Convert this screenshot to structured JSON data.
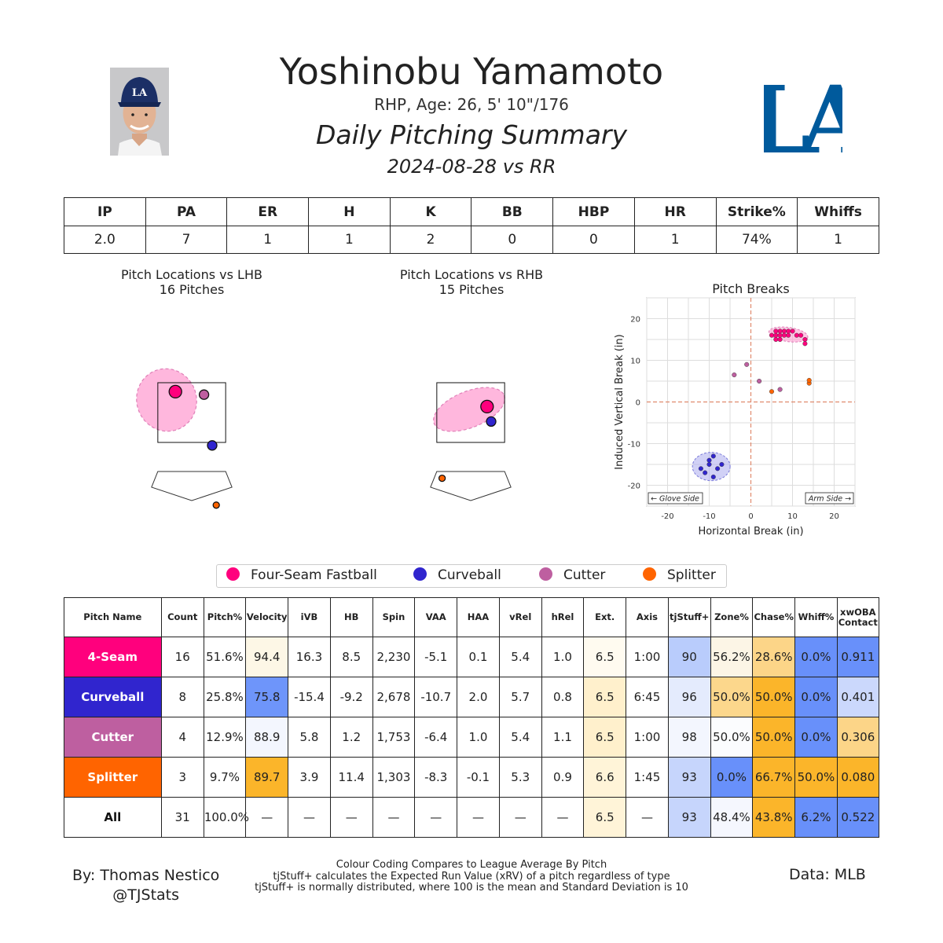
{
  "header": {
    "name": "Yoshinobu Yamamoto",
    "bio": "RHP, Age: 26, 5' 10\"/176",
    "summary_title": "Daily Pitching Summary",
    "game": "2024-08-28 vs RR",
    "team_logo": "LA"
  },
  "stat_line": {
    "headers": [
      "IP",
      "PA",
      "ER",
      "H",
      "K",
      "BB",
      "HBP",
      "HR",
      "Strike%",
      "Whiffs"
    ],
    "values": [
      "2.0",
      "7",
      "1",
      "1",
      "2",
      "0",
      "0",
      "1",
      "74%",
      "1"
    ]
  },
  "colors": {
    "four_seam": "#ff007d",
    "curveball": "#3025ce",
    "cutter": "#be5fa0",
    "splitter": "#ff6400"
  },
  "legend": {
    "items": [
      {
        "label": "Four-Seam Fastball",
        "color": "#ff007d"
      },
      {
        "label": "Curveball",
        "color": "#3025ce"
      },
      {
        "label": "Cutter",
        "color": "#be5fa0"
      },
      {
        "label": "Splitter",
        "color": "#ff6400"
      }
    ]
  },
  "chart_data": [
    {
      "type": "scatter",
      "title": "Pitch Locations vs LHB",
      "subtitle": "16 Pitches",
      "points": [
        {
          "pitch": "Four-Seam Fastball",
          "x": -0.4,
          "y": 3.2,
          "size": "large"
        },
        {
          "pitch": "Cutter",
          "x": 0.3,
          "y": 3.1,
          "size": "medium"
        },
        {
          "pitch": "Curveball",
          "x": 0.5,
          "y": 1.4,
          "size": "medium"
        },
        {
          "pitch": "Splitter",
          "x": 0.6,
          "y": -0.6,
          "size": "small"
        }
      ]
    },
    {
      "type": "scatter",
      "title": "Pitch Locations vs RHB",
      "subtitle": "15 Pitches",
      "points": [
        {
          "pitch": "Four-Seam Fastball",
          "x": 0.4,
          "y": 2.7,
          "size": "large"
        },
        {
          "pitch": "Curveball",
          "x": 0.5,
          "y": 2.2,
          "size": "medium"
        },
        {
          "pitch": "Splitter",
          "x": -0.7,
          "y": 0.3,
          "size": "small"
        }
      ]
    },
    {
      "type": "scatter",
      "title": "Pitch Breaks",
      "xlabel": "Horizontal Break (in)",
      "ylabel": "Induced Vertical Break (in)",
      "xlim": [
        -25,
        25
      ],
      "ylim": [
        -25,
        25
      ],
      "xticks": [
        -20,
        -10,
        0,
        10,
        20
      ],
      "yticks": [
        -20,
        -10,
        0,
        10,
        20
      ],
      "grid": true,
      "annotations": [
        "← Glove Side",
        "Arm Side →"
      ],
      "series": [
        {
          "name": "Four-Seam Fastball",
          "points": [
            [
              6,
              16
            ],
            [
              7,
              17
            ],
            [
              8,
              17
            ],
            [
              6,
              15
            ],
            [
              7,
              16
            ],
            [
              9,
              16
            ],
            [
              10,
              17
            ],
            [
              11,
              16
            ],
            [
              13,
              15
            ],
            [
              13,
              14
            ],
            [
              6,
              17
            ],
            [
              8,
              16
            ],
            [
              7,
              15
            ],
            [
              9,
              17
            ],
            [
              5,
              16
            ],
            [
              12,
              16
            ]
          ]
        },
        {
          "name": "Curveball",
          "points": [
            [
              -12,
              -16
            ],
            [
              -10,
              -14
            ],
            [
              -9,
              -13
            ],
            [
              -10,
              -15
            ],
            [
              -7,
              -15
            ],
            [
              -9,
              -18
            ],
            [
              -11,
              -17
            ],
            [
              -8,
              -16
            ]
          ]
        },
        {
          "name": "Cutter",
          "points": [
            [
              -1,
              9
            ],
            [
              -4,
              6.5
            ],
            [
              2,
              5
            ],
            [
              7,
              3
            ]
          ]
        },
        {
          "name": "Splitter",
          "points": [
            [
              5,
              2.5
            ],
            [
              14,
              4.5
            ],
            [
              14,
              5.2
            ]
          ]
        }
      ]
    }
  ],
  "pitch_table": {
    "headers": [
      "Pitch Name",
      "Count",
      "Pitch%",
      "Velocity",
      "iVB",
      "HB",
      "Spin",
      "VAA",
      "HAA",
      "vRel",
      "hRel",
      "Ext.",
      "Axis",
      "tjStuff+",
      "Zone%",
      "Chase%",
      "Whiff%",
      "xwOBA Contact"
    ],
    "rows": [
      {
        "name": "4-Seam",
        "color": "#ff007d",
        "cells": [
          "16",
          "51.6%",
          "94.4",
          "16.3",
          "8.5",
          "2,230",
          "-5.1",
          "0.1",
          "5.4",
          "1.0",
          "6.5",
          "1:00",
          "90",
          "56.2%",
          "28.6%",
          "0.0%",
          "0.911"
        ],
        "bg": [
          "",
          "",
          "#fdf7e6",
          "",
          "",
          "",
          "",
          "",
          "",
          "",
          "#fffbf0",
          "",
          "#b9ccfc",
          "#fcf5e6",
          "#fcd588",
          "#6890fa",
          "#6890fa"
        ]
      },
      {
        "name": "Curveball",
        "color": "#3025ce",
        "cells": [
          "8",
          "25.8%",
          "75.8",
          "-15.4",
          "-9.2",
          "2,678",
          "-10.7",
          "2.0",
          "5.7",
          "0.8",
          "6.5",
          "6:45",
          "96",
          "50.0%",
          "50.0%",
          "0.0%",
          "0.401"
        ],
        "bg": [
          "",
          "",
          "#6e95fa",
          "",
          "",
          "",
          "",
          "",
          "",
          "",
          "#fff0cc",
          "",
          "#e4ebfd",
          "#fcd78c",
          "#fbb52a",
          "#6890fa",
          "#cbd8fc"
        ]
      },
      {
        "name": "Cutter",
        "color": "#be5fa0",
        "cells": [
          "4",
          "12.9%",
          "88.9",
          "5.8",
          "1.2",
          "1,753",
          "-6.4",
          "1.0",
          "5.4",
          "1.1",
          "6.5",
          "1:00",
          "98",
          "50.0%",
          "50.0%",
          "0.0%",
          "0.306"
        ],
        "bg": [
          "",
          "",
          "#f3f6fe",
          "",
          "",
          "",
          "",
          "",
          "",
          "",
          "#fff0cc",
          "",
          "#f3f6fe",
          "#fbfcfe",
          "#fbb52a",
          "#6890fa",
          "#fcd588"
        ]
      },
      {
        "name": "Splitter",
        "color": "#ff6400",
        "cells": [
          "3",
          "9.7%",
          "89.7",
          "3.9",
          "11.4",
          "1,303",
          "-8.3",
          "-0.1",
          "5.3",
          "0.9",
          "6.6",
          "1:45",
          "93",
          "0.0%",
          "66.7%",
          "50.0%",
          "0.080"
        ],
        "bg": [
          "",
          "",
          "#fbb52a",
          "",
          "",
          "",
          "",
          "",
          "",
          "",
          "#fff4d8",
          "",
          "#c6d5fc",
          "#6890fa",
          "#fbb52a",
          "#fbb52a",
          "#fbb52a"
        ]
      },
      {
        "name": "All",
        "color": "#ffffff",
        "cells": [
          "31",
          "100.0%",
          "—",
          "—",
          "—",
          "—",
          "—",
          "—",
          "—",
          "—",
          "6.5",
          "—",
          "93",
          "48.4%",
          "43.8%",
          "6.2%",
          "0.522"
        ],
        "bg": [
          "",
          "",
          "",
          "",
          "",
          "",
          "",
          "",
          "",
          "",
          "#fff4d8",
          "",
          "#c6d5fc",
          "#f5f7fe",
          "#fbb52a",
          "#6890fa",
          "#6890fa"
        ]
      }
    ]
  },
  "footer": {
    "author": "By: Thomas Nestico",
    "handle": "@TJStats",
    "note1": "Colour Coding Compares to League Average By Pitch",
    "note2": "tjStuff+ calculates the Expected Run Value (xRV) of a pitch regardless of type",
    "note3": "tjStuff+ is normally distributed, where 100 is the mean and Standard Deviation is 10",
    "data_source": "Data: MLB"
  }
}
